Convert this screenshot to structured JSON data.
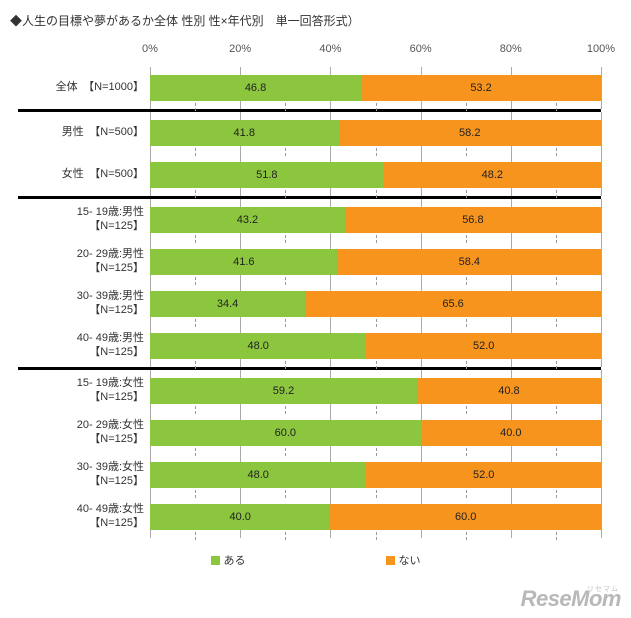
{
  "title": "◆人生の目標や夢があるか全体 性別 性×年代別　単一回答形式）",
  "axis": {
    "ticks": [
      0,
      20,
      40,
      60,
      80,
      100
    ],
    "unit": "%",
    "color": "#888888"
  },
  "colors": {
    "series_yes": "#8cc63f",
    "series_no": "#f7941d",
    "grid_major": "#aaaaaa",
    "divider": "#000000",
    "background": "#ffffff",
    "text": "#333333"
  },
  "legend": [
    {
      "label": "ある",
      "color": "#8cc63f"
    },
    {
      "label": "ない",
      "color": "#f7941d"
    }
  ],
  "sections": [
    {
      "rows": [
        {
          "label": "全体　【N=1000】",
          "yes": 46.8,
          "no": 53.2
        }
      ]
    },
    {
      "rows": [
        {
          "label": "男性　【N=500】",
          "yes": 41.8,
          "no": 58.2
        },
        {
          "label": "女性　【N=500】",
          "yes": 51.8,
          "no": 48.2
        }
      ]
    },
    {
      "rows": [
        {
          "label": "15- 19歳:男性\n【N=125】",
          "yes": 43.2,
          "no": 56.8
        },
        {
          "label": "20- 29歳:男性\n【N=125】",
          "yes": 41.6,
          "no": 58.4
        },
        {
          "label": "30- 39歳:男性\n【N=125】",
          "yes": 34.4,
          "no": 65.6
        },
        {
          "label": "40- 49歳:男性\n【N=125】",
          "yes": 48.0,
          "no": 52.0
        }
      ]
    },
    {
      "rows": [
        {
          "label": "15- 19歳:女性\n【N=125】",
          "yes": 59.2,
          "no": 40.8
        },
        {
          "label": "20- 29歳:女性\n【N=125】",
          "yes": 60.0,
          "no": 40.0
        },
        {
          "label": "30- 39歳:女性\n【N=125】",
          "yes": 48.0,
          "no": 52.0
        },
        {
          "label": "40- 49歳:女性\n【N=125】",
          "yes": 40.0,
          "no": 60.0
        }
      ]
    }
  ],
  "watermark": "ReseMom",
  "watermark_ruby": "リセマム"
}
